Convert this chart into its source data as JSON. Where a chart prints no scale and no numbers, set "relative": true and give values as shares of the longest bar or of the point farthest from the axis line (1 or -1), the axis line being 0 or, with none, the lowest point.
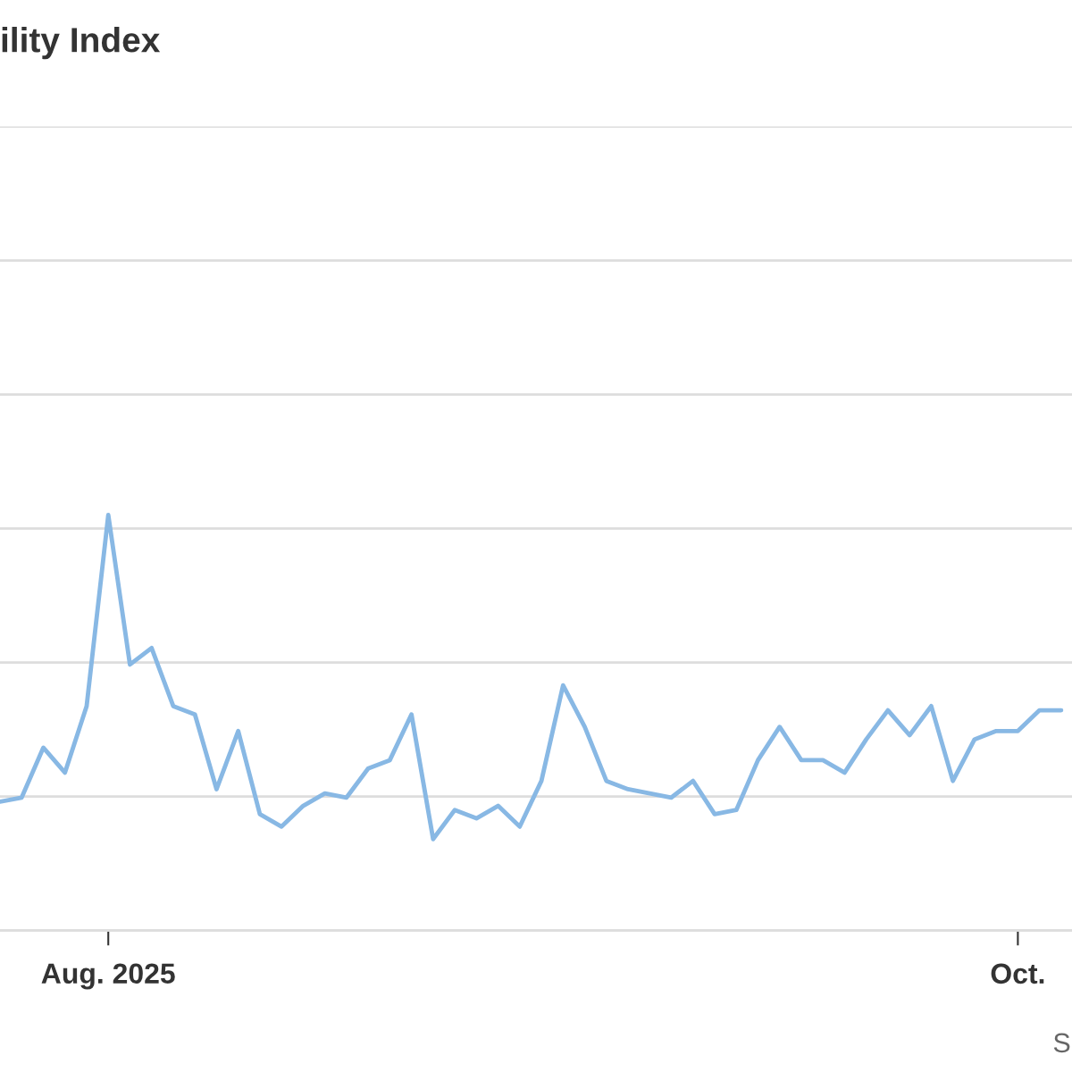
{
  "chart_data": {
    "type": "line",
    "title": "ility Index",
    "relative": true,
    "grid": "y",
    "color": "#88b8e4",
    "categories": [
      null,
      null,
      null,
      null,
      null,
      "Aug. 2025",
      null,
      null,
      null,
      null,
      null,
      null,
      null,
      null,
      null,
      null,
      null,
      null,
      null,
      null,
      null,
      null,
      null,
      null,
      null,
      null,
      null,
      null,
      null,
      null,
      null,
      null,
      null,
      null,
      null,
      null,
      null,
      null,
      null,
      null,
      null,
      null,
      null,
      null,
      null,
      null,
      null,
      "Oct.",
      null,
      null
    ],
    "values": [
      0.31,
      0.32,
      0.44,
      0.38,
      0.54,
      1.0,
      0.64,
      0.68,
      0.54,
      0.52,
      0.34,
      0.48,
      0.28,
      0.25,
      0.3,
      0.33,
      0.32,
      0.39,
      0.41,
      0.52,
      0.22,
      0.29,
      0.27,
      0.3,
      0.25,
      0.36,
      0.59,
      0.49,
      0.36,
      0.34,
      0.33,
      0.32,
      0.36,
      0.28,
      0.29,
      0.41,
      0.49,
      0.41,
      0.41,
      0.38,
      0.46,
      0.53,
      0.47,
      0.54,
      0.36,
      0.46,
      0.48,
      0.48,
      0.53,
      0.53
    ],
    "annotations": [
      "S"
    ]
  }
}
